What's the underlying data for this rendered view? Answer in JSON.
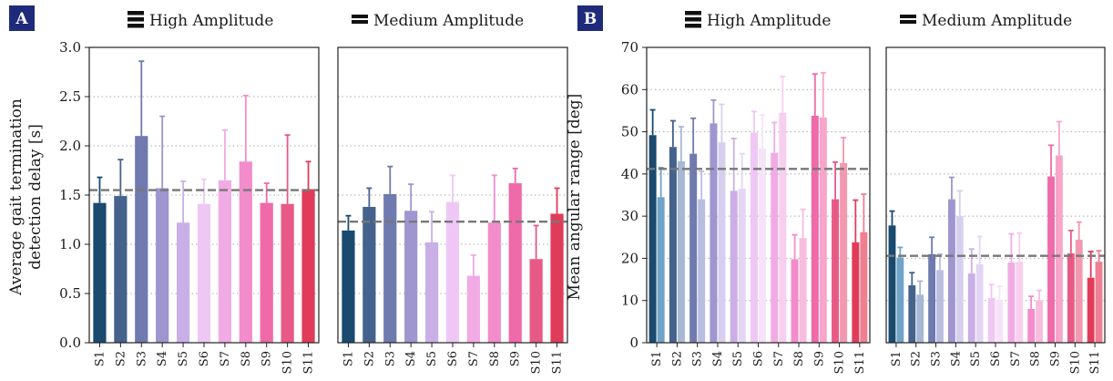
{
  "figure": {
    "panel_labels": [
      "A",
      "B"
    ]
  },
  "colors": {
    "panel_label_bg": "#1f2a7a",
    "subject_palette": [
      "#1a4a6e",
      "#44628c",
      "#6f7aae",
      "#9f95cf",
      "#c9afe6",
      "#efc7f5",
      "#f1abe4",
      "#f38ccb",
      "#ef6aa8",
      "#e85a86",
      "#e03c5a"
    ],
    "light_palette": [
      "#6fa3c8",
      "#a7b8d4",
      "#b9bde0",
      "#d6cfee",
      "#e3d6f5",
      "#f6e3f9",
      "#f6cfef",
      "#f8bcde",
      "#f7a5c8",
      "#f299b0",
      "#ef7f93"
    ],
    "mean_line": "#777777",
    "grid": "#aaaaaa"
  },
  "chart_data": [
    {
      "panel": "A",
      "type": "bar",
      "title": "High Amplitude",
      "legend_icon": "thick-lines-icon",
      "ylabel": "Average gait termination\ndetection delay [s]",
      "categories": [
        "S1",
        "S2",
        "S3",
        "S4",
        "S5",
        "S6",
        "S7",
        "S8",
        "S9",
        "S10",
        "S11"
      ],
      "ylim": [
        0,
        3.0
      ],
      "yticks": [
        "0.0",
        "0.5",
        "1.0",
        "1.5",
        "2.0",
        "2.5",
        "3.0"
      ],
      "grid": true,
      "series": [
        {
          "values": [
            1.42,
            1.49,
            2.1,
            1.57,
            1.22,
            1.41,
            1.65,
            1.84,
            1.42,
            1.41,
            1.56
          ],
          "errors": [
            0.26,
            0.37,
            0.76,
            0.73,
            0.42,
            0.25,
            0.51,
            0.67,
            0.2,
            0.7,
            0.28
          ]
        }
      ],
      "mean_line": 1.55
    },
    {
      "panel": "A",
      "type": "bar",
      "title": "Medium Amplitude",
      "legend_icon": "medium-lines-icon",
      "ylabel": "",
      "categories": [
        "S1",
        "S2",
        "S3",
        "S4",
        "S5",
        "S6",
        "S7",
        "S8",
        "S9",
        "S10",
        "S11"
      ],
      "ylim": [
        0,
        3.0
      ],
      "grid": true,
      "series": [
        {
          "values": [
            1.14,
            1.38,
            1.51,
            1.34,
            1.02,
            1.43,
            0.68,
            1.22,
            1.62,
            0.85,
            1.31
          ],
          "errors": [
            0.15,
            0.19,
            0.28,
            0.27,
            0.31,
            0.27,
            0.21,
            0.48,
            0.15,
            0.34,
            0.26
          ]
        }
      ],
      "mean_line": 1.23
    },
    {
      "panel": "B",
      "type": "bar",
      "title": "High Amplitude",
      "legend_icon": "thick-lines-icon",
      "ylabel": "Mean angular range [deg]",
      "categories": [
        "S1",
        "S2",
        "S3",
        "S4",
        "S5",
        "S6",
        "S7",
        "S8",
        "S9",
        "S10",
        "S11"
      ],
      "ylim": [
        0,
        70
      ],
      "yticks": [
        "0",
        "10",
        "20",
        "30",
        "40",
        "50",
        "60",
        "70"
      ],
      "grid": true,
      "series": [
        {
          "values": [
            49.2,
            46.4,
            44.8,
            52.0,
            36.0,
            49.8,
            45.0,
            19.8,
            53.8,
            34.0,
            23.8
          ],
          "errors": [
            6.0,
            6.2,
            8.4,
            5.5,
            12.4,
            5.0,
            7.2,
            5.8,
            9.9,
            8.8,
            10.0
          ]
        },
        {
          "values": [
            34.5,
            43.0,
            34.0,
            47.5,
            36.5,
            46.0,
            54.5,
            24.8,
            53.4,
            42.6,
            26.2
          ],
          "errors": [
            7.0,
            8.2,
            6.6,
            9.0,
            8.3,
            8.0,
            8.6,
            6.8,
            10.6,
            6.0,
            9.0
          ]
        }
      ],
      "mean_line": 41.2
    },
    {
      "panel": "B",
      "type": "bar",
      "title": "Medium Amplitude",
      "legend_icon": "medium-lines-icon",
      "ylabel": "",
      "categories": [
        "S1",
        "S2",
        "S3",
        "S4",
        "S5",
        "S6",
        "S7",
        "S8",
        "S9",
        "S10",
        "S11"
      ],
      "ylim": [
        0,
        70
      ],
      "grid": true,
      "series": [
        {
          "values": [
            27.8,
            13.6,
            21.0,
            34.0,
            16.4,
            10.6,
            19.0,
            8.0,
            39.4,
            21.2,
            15.4
          ],
          "errors": [
            3.4,
            3.0,
            4.0,
            5.2,
            5.8,
            3.2,
            6.8,
            3.0,
            7.4,
            5.4,
            6.2
          ]
        },
        {
          "values": [
            20.2,
            11.4,
            17.2,
            30.0,
            18.6,
            10.2,
            19.2,
            10.0,
            44.4,
            24.4,
            19.2
          ],
          "errors": [
            2.4,
            3.2,
            3.8,
            6.0,
            6.6,
            3.2,
            6.8,
            2.4,
            8.0,
            4.2,
            2.6
          ]
        }
      ],
      "mean_line": 20.6
    }
  ]
}
